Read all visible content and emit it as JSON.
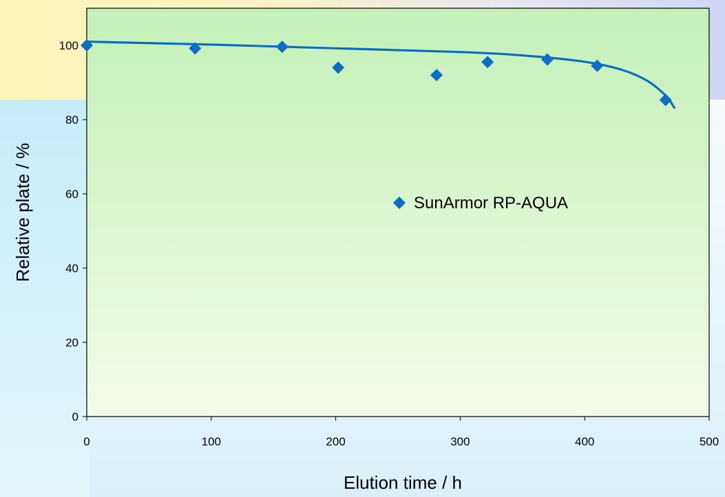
{
  "chart_data": {
    "type": "scatter",
    "title": "",
    "xlabel": "Elution time / h",
    "ylabel": "Relative plate / %",
    "xlim": [
      0,
      500
    ],
    "ylim": [
      0,
      110
    ],
    "xticks": [
      0,
      100,
      200,
      300,
      400,
      500
    ],
    "yticks": [
      0,
      20,
      40,
      60,
      80,
      100
    ],
    "grid": false,
    "legend_position": "center-right",
    "colors": {
      "marker": "#0a6fc4",
      "trendline": "#0a6fc4",
      "plot_bg_top": "#c4f0b8",
      "plot_bg_bottom": "#f3fbe9"
    },
    "series": [
      {
        "name": "SunArmor RP-AQUA",
        "marker": "diamond",
        "x": [
          0,
          87,
          157,
          202,
          281,
          322,
          370,
          410,
          465
        ],
        "y": [
          100,
          99.2,
          99.6,
          94,
          92,
          95.5,
          96.2,
          94.5,
          85.3
        ]
      }
    ],
    "trendline": {
      "x": [
        0,
        100,
        200,
        300,
        350,
        400,
        430,
        450,
        465,
        472
      ],
      "y": [
        101,
        100.2,
        99.2,
        98.2,
        97.3,
        95.6,
        93.4,
        90.5,
        86.5,
        83.2
      ]
    }
  }
}
